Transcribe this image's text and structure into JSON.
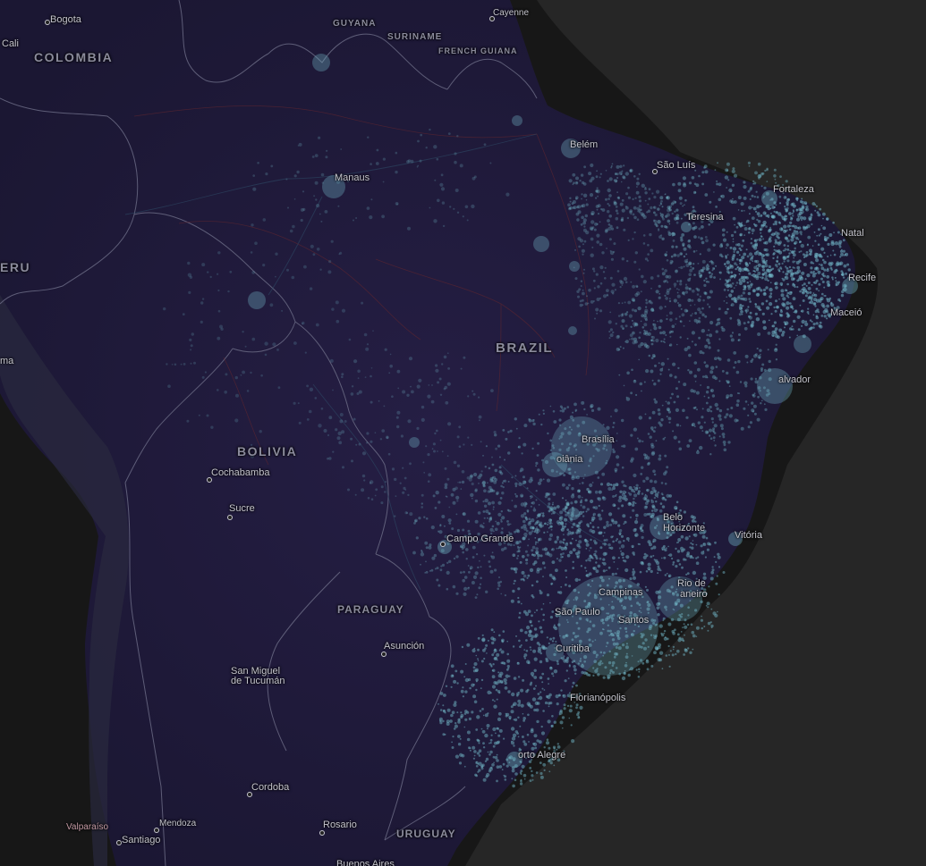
{
  "map": {
    "colors": {
      "ocean": "#262626",
      "land": "#1f1a38",
      "border": "#6a6a84",
      "symbol": "#6fb3c4"
    },
    "countries": {
      "colombia": "COLOMBIA",
      "guyana": "GUYANA",
      "suriname": "SURINAME",
      "french_guiana": "FRENCH GUIANA",
      "brazil": "BRAZIL",
      "bolivia": "BOLIVIA",
      "paraguay": "PARAGUAY",
      "uruguay": "URUGUAY",
      "peru": "ERU"
    },
    "cities": {
      "bogota": "Bogota",
      "cali": "Cali",
      "cayenne": "Cayenne",
      "manaus": "Manaus",
      "belem": "Belém",
      "sao_luis": "São Luís",
      "fortaleza": "Fortaleza",
      "teresina": "Teresina",
      "natal": "Natal",
      "recife": "Recife",
      "maceio": "Maceió",
      "salvador": "alvador",
      "brasilia": "Brasília",
      "goiania": "oiânia",
      "belo_horizonte_1": "Belo",
      "belo_horizonte_2": "Horizonte",
      "vitoria": "Vitória",
      "rio_1": "Rio de",
      "rio_2": "aneiro",
      "campinas": "Campinas",
      "sao_paulo": "São Paulo",
      "santos": "Santos",
      "curitiba": "Curitiba",
      "florianopolis": "Florianópolis",
      "porto_alegre": "orto Alegre",
      "campo_grande": "Campo Grande",
      "cochabamba": "Cochabamba",
      "sucre": "Sucre",
      "asuncion": "Asunción",
      "tucuman_1": "San Miguel",
      "tucuman_2": "de Tucumán",
      "cordoba": "Cordoba",
      "rosario": "Rosario",
      "buenos_aires": "Buenos Aires",
      "mendoza": "Mendoza",
      "valparaiso": "Valparaíso",
      "santiago": "Santiago",
      "lima": "ma"
    }
  }
}
